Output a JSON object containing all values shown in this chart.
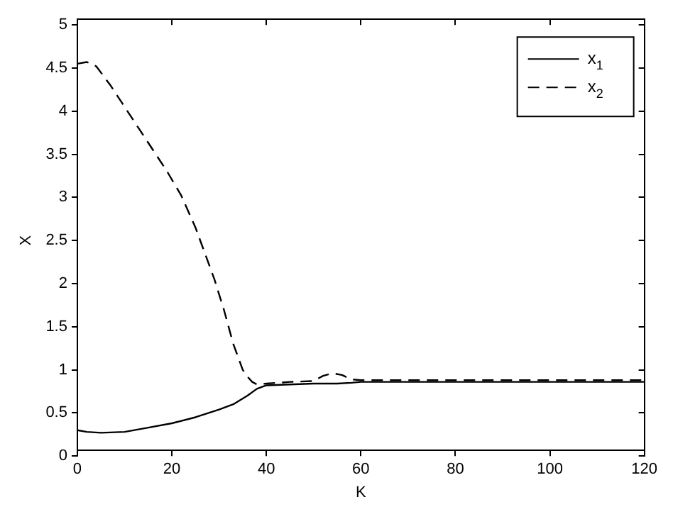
{
  "chart_data": {
    "type": "line",
    "xlabel": "K",
    "ylabel": "X",
    "xlim": [
      0,
      120
    ],
    "ylim": [
      0,
      5
    ],
    "xticks": [
      0,
      20,
      40,
      60,
      80,
      100,
      120
    ],
    "yticks": [
      0,
      0.5,
      1,
      1.5,
      2,
      2.5,
      3,
      3.5,
      4,
      4.5,
      5
    ],
    "grid": false,
    "legend": "top right",
    "marker": "none",
    "series": [
      {
        "name": "x$_{1}$",
        "color": "#000000",
        "line_style": "solid",
        "x": [
          0,
          2,
          5,
          10,
          15,
          20,
          25,
          30,
          33,
          36,
          38,
          40,
          45,
          50,
          55,
          58,
          60,
          80,
          100,
          120
        ],
        "values": [
          0.3,
          0.28,
          0.27,
          0.28,
          0.33,
          0.38,
          0.45,
          0.54,
          0.6,
          0.7,
          0.78,
          0.82,
          0.83,
          0.84,
          0.84,
          0.85,
          0.86,
          0.86,
          0.86,
          0.86
        ]
      },
      {
        "name": "x$_{2}$",
        "color": "#000000",
        "line_style": "dashed",
        "x": [
          0,
          2,
          4,
          7,
          10,
          13,
          16,
          19,
          22,
          25,
          27,
          29,
          31,
          33,
          35,
          36,
          37,
          38,
          40,
          45,
          50,
          52,
          54,
          56,
          58,
          60,
          80,
          100,
          120
        ],
        "values": [
          4.55,
          4.57,
          4.52,
          4.3,
          4.05,
          3.8,
          3.55,
          3.3,
          3.02,
          2.65,
          2.35,
          2.05,
          1.7,
          1.3,
          1.0,
          0.92,
          0.86,
          0.83,
          0.84,
          0.86,
          0.87,
          0.93,
          0.96,
          0.94,
          0.89,
          0.88,
          0.88,
          0.88,
          0.88
        ]
      }
    ]
  }
}
